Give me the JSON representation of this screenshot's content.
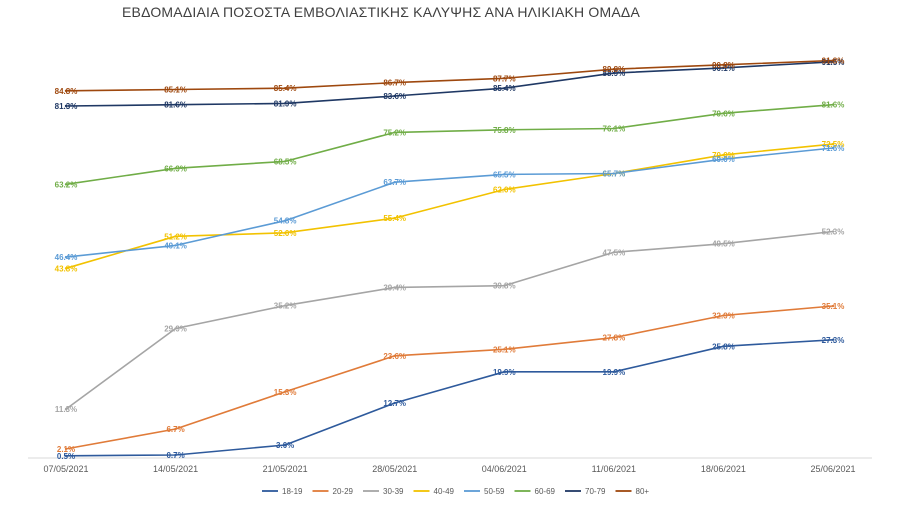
{
  "chart_data": {
    "type": "line",
    "title": "ΕΒΔΟΜΑΔΙΑΙΑ ΠΟΣΟΣΤΑ ΕΜΒΟΛΙΑΣΤΙΚΗΣ ΚΑΛΥΨΗΣ ΑΝΑ ΗΛΙΚΙΑΚΗ ΟΜΑΔΑ",
    "xlabel": "",
    "ylabel": "",
    "ylim": [
      0,
      100
    ],
    "grid": false,
    "legend_position": "bottom",
    "categories": [
      "07/05/2021",
      "14/05/2021",
      "21/05/2021",
      "28/05/2021",
      "04/06/2021",
      "11/06/2021",
      "18/06/2021",
      "25/06/2021"
    ],
    "series": [
      {
        "name": "18-19",
        "color": "#2e5a9c",
        "values": [
          0.5,
          0.7,
          3.0,
          12.7,
          19.9,
          19.9,
          25.8,
          27.3
        ],
        "labels": [
          "0.5%",
          "0.7%",
          "3.0%",
          "12.7%",
          "19.9%",
          "19.9%",
          "25.8%",
          "27.3%"
        ]
      },
      {
        "name": "20-29",
        "color": "#e07b39",
        "values": [
          2.1,
          6.7,
          15.3,
          23.6,
          25.1,
          27.8,
          32.9,
          35.1
        ],
        "labels": [
          "2.1%",
          "6.7%",
          "15.3%",
          "23.6%",
          "25.1%",
          "27.8%",
          "32.9%",
          "35.1%"
        ]
      },
      {
        "name": "30-39",
        "color": "#a5a5a5",
        "values": [
          11.3,
          29.9,
          35.2,
          39.4,
          39.8,
          47.5,
          49.5,
          52.3
        ],
        "labels": [
          "11.3%",
          "29.9%",
          "35.2%",
          "39.4%",
          "39.8%",
          "47.5%",
          "49.5%",
          "52.3%"
        ]
      },
      {
        "name": "40-49",
        "color": "#f2c200",
        "values": [
          43.8,
          51.2,
          52.0,
          55.4,
          62.0,
          65.7,
          70.0,
          72.5
        ],
        "labels": [
          "43.8%",
          "51.2%",
          "52.0%",
          "55.4%",
          "62.0%",
          "65.7%",
          "70.0%",
          "72.5%"
        ]
      },
      {
        "name": "50-59",
        "color": "#5b9bd5",
        "values": [
          46.4,
          49.1,
          54.8,
          63.7,
          65.5,
          65.7,
          69.0,
          71.6
        ],
        "labels": [
          "46.4%",
          "49.1%",
          "54.8%",
          "63.7%",
          "65.5%",
          "65.7%",
          "69.0%",
          "71.6%"
        ]
      },
      {
        "name": "60-69",
        "color": "#70ad47",
        "values": [
          63.2,
          66.9,
          68.5,
          75.2,
          75.8,
          76.1,
          79.6,
          81.6
        ],
        "labels": [
          "63.2%",
          "66.9%",
          "68.5%",
          "75.2%",
          "75.8%",
          "76.1%",
          "79.6%",
          "81.6%"
        ]
      },
      {
        "name": "70-79",
        "color": "#1f3864",
        "values": [
          81.3,
          81.6,
          81.9,
          83.6,
          85.4,
          88.9,
          90.1,
          91.5
        ],
        "labels": [
          "81.3%",
          "81.6%",
          "81.9%",
          "83.6%",
          "85.4%",
          "88.9%",
          "90.1%",
          "91.5%"
        ]
      },
      {
        "name": "80+",
        "color": "#9e480e",
        "values": [
          84.8,
          85.1,
          85.4,
          86.7,
          87.7,
          89.8,
          90.8,
          91.8
        ],
        "labels": [
          "84.8%",
          "85.1%",
          "85.4%",
          "86.7%",
          "87.7%",
          "89.8%",
          "90.8%",
          "91.8%"
        ]
      }
    ]
  }
}
